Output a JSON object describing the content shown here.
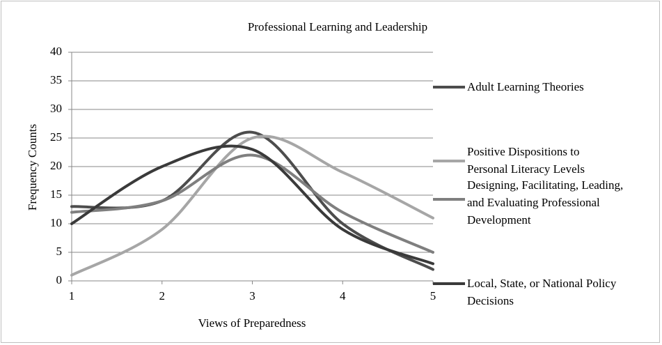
{
  "chart_data": {
    "type": "line",
    "title": "Professional Learning and Leadership",
    "x_label": "Views of Preparedness",
    "y_label": "Frequency Counts",
    "x": [
      1,
      2,
      3,
      4,
      5
    ],
    "xlim": [
      1,
      5
    ],
    "xticks": [
      1,
      2,
      3,
      4,
      5
    ],
    "ylim": [
      0,
      40
    ],
    "yticks": [
      0,
      5,
      10,
      15,
      20,
      25,
      30,
      35,
      40
    ],
    "grid": true,
    "smooth": true,
    "legend": "right",
    "series": [
      {
        "name": "Adult Learning Theories",
        "color": "#4d4d4d",
        "values": [
          13,
          14,
          26,
          10,
          2
        ]
      },
      {
        "name": "Positive Dispositions to Personal Literacy Levels",
        "color": "#a6a6a6",
        "values": [
          1,
          9,
          25,
          19,
          11
        ]
      },
      {
        "name": "Designing, Facilitating, Leading, and Evaluating Professional Development",
        "color": "#7f7f7f",
        "values": [
          12,
          14,
          22,
          12,
          5
        ]
      },
      {
        "name": "Local, State, or National Policy Decisions",
        "color": "#3a3a3a",
        "values": [
          10,
          20,
          23,
          9,
          3
        ]
      }
    ]
  }
}
